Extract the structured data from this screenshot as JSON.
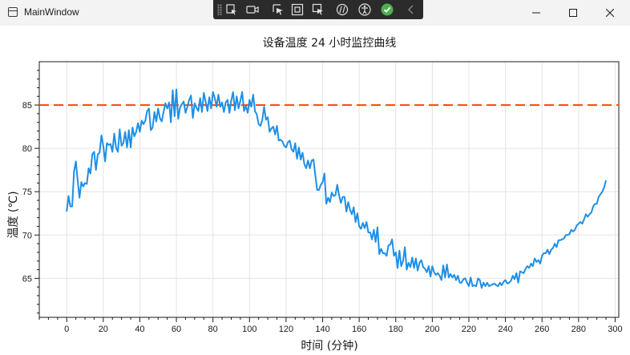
{
  "window": {
    "title": "MainWindow",
    "controls": [
      "minimize",
      "maximize",
      "close"
    ]
  },
  "devtools": {
    "icons": [
      "live-visual-tree-icon",
      "record-icon",
      "select-element-icon",
      "display-layout-icon",
      "track-focus-icon",
      "hot-reload-icon",
      "accessibility-icon",
      "check-icon",
      "collapse-icon"
    ],
    "accent": "#4caf50"
  },
  "chart_data": {
    "type": "line",
    "title": "设备温度 24 小时监控曲线",
    "xlabel": "时间 (分钟)",
    "ylabel": "温度 (℃)",
    "xlim": [
      -15,
      302
    ],
    "ylim": [
      60.5,
      90
    ],
    "xticks": [
      0,
      20,
      40,
      60,
      80,
      100,
      120,
      140,
      160,
      180,
      200,
      220,
      240,
      260,
      280,
      300
    ],
    "yticks": [
      65,
      70,
      75,
      80,
      85
    ],
    "grid": true,
    "x_start": 0,
    "x_step": 1,
    "threshold": {
      "value": 85,
      "style": "dashed",
      "color": "#ff4500"
    },
    "series": [
      {
        "color": "#1e8fe6",
        "values": [
          72.7,
          74.5,
          73.3,
          73.3,
          77.3,
          78.5,
          76.3,
          74.3,
          76.1,
          75.6,
          76,
          75.9,
          77.7,
          77.1,
          79.3,
          79.6,
          77.5,
          79.3,
          79.5,
          81.5,
          80.3,
          78.5,
          80.6,
          80.4,
          80.5,
          79.6,
          81.7,
          80.1,
          79.6,
          82.2,
          80.3,
          80.6,
          81.9,
          80.1,
          82.1,
          80.1,
          82.4,
          81.4,
          81.9,
          82.9,
          81.9,
          83.2,
          82.8,
          83.2,
          84.3,
          84.6,
          82.1,
          82.4,
          84.2,
          83.1,
          84.6,
          83.5,
          83.1,
          84.2,
          85.2,
          84.6,
          85.3,
          83,
          86.7,
          83.7,
          86.8,
          83.4,
          84.7,
          85.1,
          85.4,
          84.1,
          84.8,
          85.6,
          86.1,
          83.5,
          85.2,
          84.7,
          84.3,
          85.8,
          84.2,
          86.4,
          85.4,
          84.3,
          85.9,
          84.6,
          86.5,
          85.8,
          84.8,
          86.2,
          84.8,
          85.3,
          84.2,
          85.3,
          85.6,
          84.1,
          85.5,
          86.5,
          84.4,
          86,
          84.6,
          85.5,
          86.5,
          84.3,
          84.9,
          84.1,
          85.6,
          84.8,
          86.2,
          84.3,
          83.9,
          82.8,
          82.6,
          83.3,
          84.8,
          83.3,
          83.6,
          81.9,
          82.3,
          82.5,
          81.6,
          82.6,
          80.9,
          81,
          80.8,
          80.3,
          80.1,
          80.7,
          80.9,
          79.9,
          79.6,
          80.6,
          78.8,
          80.1,
          78.7,
          79.5,
          78.2,
          77.7,
          78.6,
          77.7,
          78.6,
          78.7,
          76.9,
          75.2,
          75.2,
          75.8,
          76.1,
          77.1,
          73.6,
          74.3,
          73.8,
          74.9,
          74.5,
          74.6,
          75.8,
          74.6,
          73.7,
          74.4,
          74.4,
          72.7,
          73.8,
          72.9,
          72.4,
          73.2,
          71.5,
          72.5,
          71,
          70.7,
          71.4,
          70.8,
          71.5,
          70.3,
          70.3,
          69.5,
          70.6,
          69.2,
          70.9,
          67.8,
          68.4,
          67.9,
          67.9,
          67.6,
          68.8,
          68.9,
          69.5,
          67.6,
          68,
          66.2,
          68.2,
          66.4,
          67,
          68.6,
          66,
          66.8,
          66.3,
          67.4,
          66.2,
          67.3,
          65.9,
          66.8,
          67.1,
          66.3,
          66.1,
          65.7,
          66.4,
          65.2,
          66.4,
          65.7,
          65.4,
          65.6,
          65.3,
          64.8,
          66.5,
          65.1,
          66.6,
          65.1,
          65.5,
          65.1,
          65.4,
          64.8,
          65.3,
          64.5,
          64.5,
          64.9,
          65,
          64.5,
          64.1,
          65.1,
          64.1,
          64.2,
          64.1,
          65,
          64.8,
          63.9,
          64.5,
          64.1,
          64.5,
          64.1,
          64.2,
          64.3,
          64.4,
          64.2,
          64.1,
          64.5,
          64.2,
          64.6,
          64.8,
          64.4,
          64.5,
          64.7,
          65.3,
          64.9,
          65.6,
          64.5,
          65.8,
          65.7,
          65.6,
          66.1,
          66.4,
          66.2,
          66.7,
          66.4,
          67.3,
          66.9,
          67.1,
          66.7,
          67.6,
          67.9,
          67.9,
          68.3,
          67.8,
          68.3,
          68.5,
          69,
          68.6,
          69.4,
          69.4,
          69.5,
          69.6,
          70,
          70,
          70.1,
          70.6,
          70.4,
          70.6,
          71.1,
          71.3,
          71.5,
          71.3,
          71.8,
          72.4,
          72.1,
          72.4,
          72.6,
          73.3,
          73.6,
          73.6,
          74.4,
          74.7,
          75,
          75.5,
          76.3
        ]
      }
    ]
  }
}
